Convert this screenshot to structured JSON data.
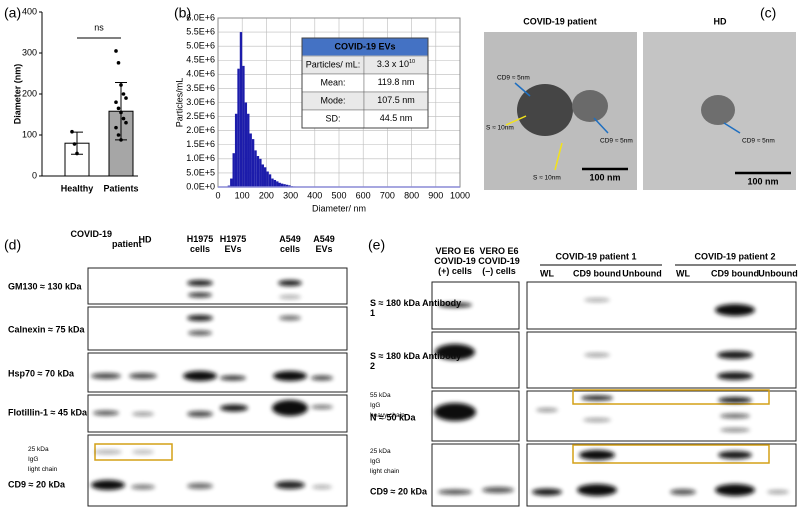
{
  "panel_labels": [
    "(a)",
    "(b)",
    "(c)",
    "(d)",
    "(e)"
  ],
  "chart_data": [
    {
      "type": "bar",
      "y_label": "Diameter (nm)",
      "categories": [
        "Healthy",
        "Patients"
      ],
      "values": [
        80,
        158
      ],
      "errors": [
        27,
        70
      ],
      "points": [
        [
          108,
          78,
          55
        ],
        [
          305,
          276,
          222,
          200,
          190,
          180,
          165,
          155,
          140,
          130,
          118,
          100,
          88
        ]
      ],
      "colors": [
        "#ffffff",
        "#a6a6a6"
      ],
      "ylim": [
        0,
        400
      ],
      "yticks": [
        0,
        100,
        200,
        300,
        400
      ],
      "annotation": "ns"
    },
    {
      "type": "histogram",
      "y_label": "Particles/mL",
      "x_label": "Diameter/ nm",
      "color": "#1c1cab",
      "grid": true,
      "bins": [
        0,
        10,
        20,
        30,
        40,
        50,
        60,
        70,
        80,
        90,
        100,
        110,
        120,
        130,
        140,
        150,
        160,
        170,
        180,
        190,
        200,
        210,
        220,
        230,
        240,
        250,
        260,
        270,
        280,
        290,
        300,
        310,
        320,
        330,
        340,
        350,
        360,
        370,
        380,
        390,
        400
      ],
      "counts": [
        0,
        0,
        0,
        0,
        50000,
        300000,
        1200000,
        2600000,
        4200000,
        5500000,
        4300000,
        3000000,
        2600000,
        1900000,
        1700000,
        1300000,
        1100000,
        1000000,
        800000,
        700000,
        550000,
        450000,
        300000,
        250000,
        200000,
        150000,
        120000,
        100000,
        80000,
        60000,
        30000,
        20000,
        10000,
        0,
        0,
        10000,
        0,
        5000,
        0,
        0
      ],
      "xlim": [
        0,
        1000
      ],
      "xticks": [
        0,
        100,
        200,
        300,
        400,
        500,
        600,
        700,
        800,
        900,
        1000
      ],
      "ylim": [
        0,
        6000000
      ],
      "yticks": [
        {
          "value": 0,
          "label": "0.0E+0"
        },
        {
          "value": 500000,
          "label": "5.0E+5"
        },
        {
          "value": 1000000,
          "label": "1.0E+6"
        },
        {
          "value": 1500000,
          "label": "1.5E+6"
        },
        {
          "value": 2000000,
          "label": "2.0E+6"
        },
        {
          "value": 2500000,
          "label": "2.5E+6"
        },
        {
          "value": 3000000,
          "label": "3.0E+6"
        },
        {
          "value": 3500000,
          "label": "3.5E+6"
        },
        {
          "value": 4000000,
          "label": "4.0E+6"
        },
        {
          "value": 4500000,
          "label": "4.5E+6"
        },
        {
          "value": 5000000,
          "label": "5.0E+6"
        },
        {
          "value": 5500000,
          "label": "5.5E+6"
        },
        {
          "value": 6000000,
          "label": "6.0E+6"
        }
      ],
      "table": {
        "title": "COVID-19 EVs",
        "rows": [
          {
            "label": "Particles/ mL:",
            "value": "3.3 x 10",
            "exponent": "10"
          },
          {
            "label": "Mean:",
            "value": "119.8 nm"
          },
          {
            "label": "Mode:",
            "value": "107.5 nm"
          },
          {
            "label": "SD:",
            "value": "44.5 nm"
          }
        ]
      }
    }
  ],
  "em": {
    "titles": [
      "COVID-19 patient",
      "HD"
    ],
    "labels": [
      "CD9 ≈ 5nm",
      "S ≈ 10nm",
      "S ≈ 10nm",
      "CD9 ≈ 5nm",
      "CD9 ≈ 5nm"
    ],
    "scale_bars": [
      "100 nm",
      "100 nm"
    ]
  },
  "western_d": {
    "columns": [
      "COVID-19 patient",
      "HD",
      "H1975 cells",
      "H1975 EVs",
      "A549 cells",
      "A549 EVs"
    ],
    "rows": [
      "GM130 ≈ 130 kDa",
      "Calnexin ≈ 75 kDa",
      "Hsp70 ≈ 70 kDa",
      "Flotillin-1 ≈ 45 kDa",
      "25 kDa IgG light chain",
      "CD9 ≈ 20 kDa"
    ]
  },
  "western_e": {
    "columns": [
      "VERO E6 COVID-19 (+) cells",
      "VERO E6 COVID-19 (–) cells"
    ],
    "groups": [
      "COVID-19 patient 1",
      "COVID-19 patient 2"
    ],
    "subcolumns": [
      "WL",
      "CD9 bound",
      "Unbound",
      "WL",
      "CD9 bound",
      "Unbound"
    ],
    "rows": [
      "S ≈ 180 kDa Antibody 1",
      "S ≈ 180 kDa Antibody 2",
      "55 kDa IgG heavy chain",
      "N ≈ 50 kDa",
      "25 kDa IgG light chain",
      "CD9 ≈ 20 kDa"
    ]
  }
}
